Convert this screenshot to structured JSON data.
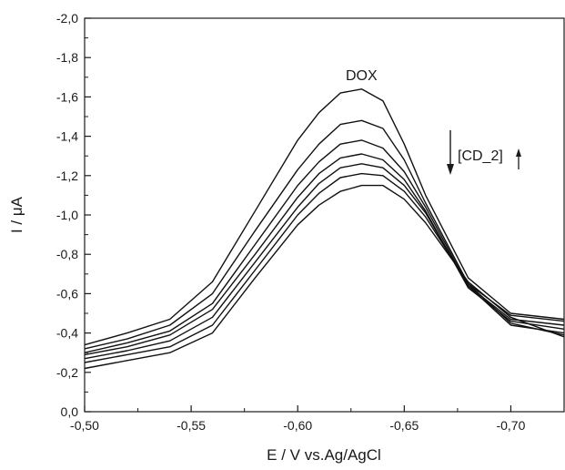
{
  "chart_data": {
    "type": "line",
    "title": "",
    "xlabel": "E / V vs.Ag/AgCl",
    "ylabel": "I / μA",
    "xlim": [
      -0.5,
      -0.725
    ],
    "ylim": [
      0.0,
      -2.0
    ],
    "x_axis_reversed": true,
    "y_axis_inverted": true,
    "x_ticks": [
      -0.5,
      -0.55,
      -0.6,
      -0.65,
      -0.7
    ],
    "x_tick_labels": [
      "-0,50",
      "-0,55",
      "-0,60",
      "-0,65",
      "-0,70"
    ],
    "y_ticks": [
      0.0,
      -0.2,
      -0.4,
      -0.6,
      -0.8,
      -1.0,
      -1.2,
      -1.4,
      -1.6,
      -1.8,
      -2.0
    ],
    "y_tick_labels": [
      "0,0",
      "-0,2",
      "-0,4",
      "-0,6",
      "-0,8",
      "-1,0",
      "-1,2",
      "-1,4",
      "-1,6",
      "-1,8",
      "-2,0"
    ],
    "grid": false,
    "line_color": "#111111",
    "annotations": {
      "peak_label": "DOX",
      "trend_label": "[CD_2]"
    },
    "series": [
      {
        "x": [
          -0.5,
          -0.52,
          -0.54,
          -0.56,
          -0.58,
          -0.6,
          -0.61,
          -0.62,
          -0.63,
          -0.64,
          -0.65,
          -0.66,
          -0.68,
          -0.7,
          -0.725
        ],
        "y": [
          -0.34,
          -0.4,
          -0.47,
          -0.66,
          -1.02,
          -1.38,
          -1.52,
          -1.62,
          -1.64,
          -1.58,
          -1.36,
          -1.1,
          -0.68,
          -0.5,
          -0.47
        ]
      },
      {
        "x": [
          -0.5,
          -0.52,
          -0.54,
          -0.56,
          -0.58,
          -0.6,
          -0.61,
          -0.62,
          -0.63,
          -0.64,
          -0.65,
          -0.66,
          -0.68,
          -0.7,
          -0.725
        ],
        "y": [
          -0.32,
          -0.37,
          -0.44,
          -0.6,
          -0.92,
          -1.23,
          -1.36,
          -1.46,
          -1.48,
          -1.44,
          -1.28,
          -1.06,
          -0.65,
          -0.49,
          -0.46
        ]
      },
      {
        "x": [
          -0.5,
          -0.52,
          -0.54,
          -0.56,
          -0.58,
          -0.6,
          -0.61,
          -0.62,
          -0.63,
          -0.64,
          -0.65,
          -0.66,
          -0.68,
          -0.7,
          -0.725
        ],
        "y": [
          -0.3,
          -0.35,
          -0.41,
          -0.55,
          -0.85,
          -1.15,
          -1.27,
          -1.36,
          -1.38,
          -1.34,
          -1.22,
          -1.04,
          -0.64,
          -0.47,
          -0.44
        ]
      },
      {
        "x": [
          -0.5,
          -0.52,
          -0.54,
          -0.56,
          -0.58,
          -0.6,
          -0.61,
          -0.62,
          -0.63,
          -0.64,
          -0.65,
          -0.66,
          -0.68,
          -0.7,
          -0.725
        ],
        "y": [
          -0.29,
          -0.33,
          -0.39,
          -0.52,
          -0.8,
          -1.09,
          -1.21,
          -1.29,
          -1.31,
          -1.28,
          -1.18,
          -1.02,
          -0.63,
          -0.46,
          -0.42
        ]
      },
      {
        "x": [
          -0.5,
          -0.52,
          -0.54,
          -0.56,
          -0.58,
          -0.6,
          -0.61,
          -0.62,
          -0.63,
          -0.64,
          -0.65,
          -0.66,
          -0.68,
          -0.7,
          -0.725
        ],
        "y": [
          -0.27,
          -0.31,
          -0.36,
          -0.48,
          -0.76,
          -1.04,
          -1.16,
          -1.24,
          -1.26,
          -1.24,
          -1.15,
          -1.01,
          -0.64,
          -0.44,
          -0.4
        ]
      },
      {
        "x": [
          -0.5,
          -0.52,
          -0.54,
          -0.56,
          -0.58,
          -0.6,
          -0.61,
          -0.62,
          -0.63,
          -0.64,
          -0.65,
          -0.66,
          -0.68,
          -0.7,
          -0.725
        ],
        "y": [
          -0.25,
          -0.29,
          -0.33,
          -0.44,
          -0.72,
          -1.0,
          -1.11,
          -1.19,
          -1.21,
          -1.2,
          -1.12,
          -0.99,
          -0.65,
          -0.45,
          -0.39
        ]
      },
      {
        "x": [
          -0.5,
          -0.52,
          -0.54,
          -0.56,
          -0.58,
          -0.6,
          -0.61,
          -0.62,
          -0.63,
          -0.64,
          -0.65,
          -0.66,
          -0.68,
          -0.7,
          -0.725
        ],
        "y": [
          -0.22,
          -0.26,
          -0.3,
          -0.4,
          -0.68,
          -0.95,
          -1.05,
          -1.12,
          -1.15,
          -1.15,
          -1.08,
          -0.96,
          -0.66,
          -0.48,
          -0.38
        ]
      }
    ]
  }
}
